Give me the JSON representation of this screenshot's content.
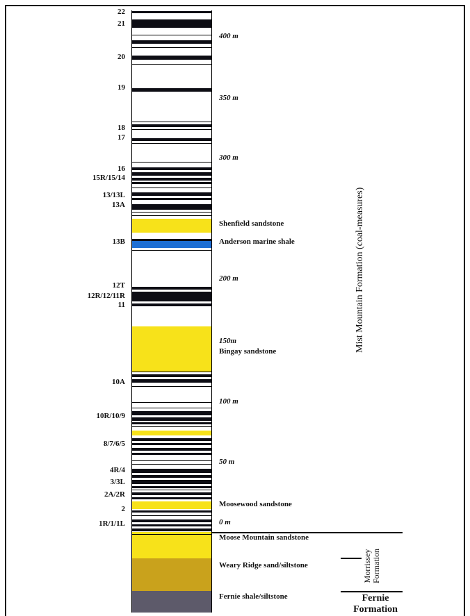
{
  "seam_labels": [
    {
      "key": "22",
      "text": "22"
    },
    {
      "key": "21",
      "text": "21"
    },
    {
      "key": "20",
      "text": "20"
    },
    {
      "key": "19",
      "text": "19"
    },
    {
      "key": "18",
      "text": "18"
    },
    {
      "key": "17",
      "text": "17"
    },
    {
      "key": "16",
      "text": "16"
    },
    {
      "key": "15r",
      "text": "15R/15/14"
    },
    {
      "key": "13",
      "text": "13/13L"
    },
    {
      "key": "13a",
      "text": "13A"
    },
    {
      "key": "13b",
      "text": "13B"
    },
    {
      "key": "12t",
      "text": "12T"
    },
    {
      "key": "12r",
      "text": "12R/12/11R"
    },
    {
      "key": "11",
      "text": "11"
    },
    {
      "key": "10a",
      "text": "10A"
    },
    {
      "key": "10r",
      "text": "10R/10/9"
    },
    {
      "key": "8",
      "text": "8/7/6/5"
    },
    {
      "key": "4r",
      "text": "4R/4"
    },
    {
      "key": "3",
      "text": "3/3L"
    },
    {
      "key": "2a",
      "text": "2A/2R"
    },
    {
      "key": "2",
      "text": "2"
    },
    {
      "key": "1r",
      "text": "1R/1/1L"
    }
  ],
  "depth_labels": [
    "400 m",
    "350 m",
    "300 m",
    "200 m",
    "150m",
    "100 m",
    "50 m",
    "0 m"
  ],
  "unit_labels": {
    "shenfield": "Shenfield sandstone",
    "anderson": "Anderson marine shale",
    "bingay": "Bingay sandstone",
    "moosewood": "Moosewood sandstone",
    "moose_mountain": "Moose Mountain sandstone",
    "weary_ridge": "Weary Ridge sand/siltstone",
    "fernie_shale": "Fernie shale/siltstone"
  },
  "formations": {
    "mist_mountain": "Mist Mountain Formation (coal-measures)",
    "morrissey_line1": "Morrissey",
    "morrissey_line2": "Formation",
    "fernie_line1": "Fernie",
    "fernie_line2": "Formation"
  },
  "colors": {
    "coal": "#0d0d14",
    "sandstone": "#f7e21a",
    "marine_shale": "#1e6fd4",
    "weary_ridge": "#c9a21c",
    "fernie": "#5d5a6a"
  }
}
